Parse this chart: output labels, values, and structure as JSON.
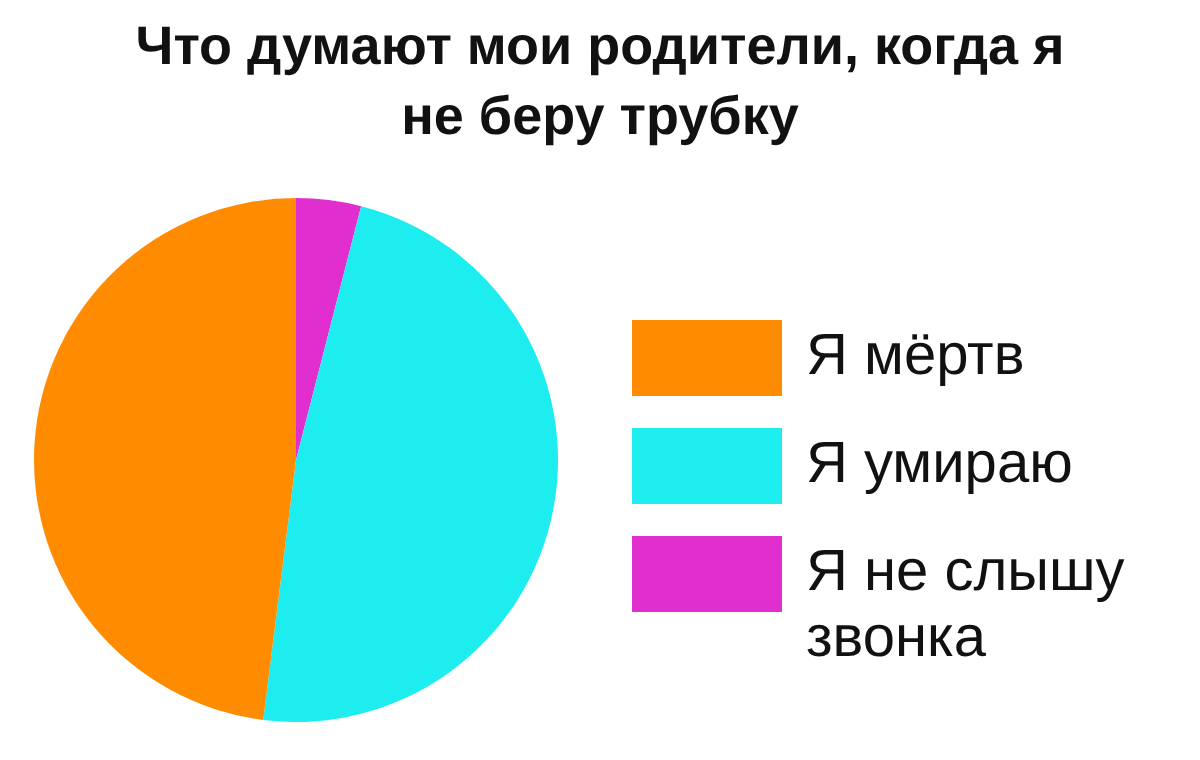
{
  "chart_data": {
    "type": "pie",
    "title": "Что думают мои родители, когда я не беру трубку",
    "categories": [
      "Я мёртв",
      "Я умираю",
      "Я не слышу звонка"
    ],
    "values": [
      48,
      48,
      4
    ],
    "colors": [
      "#ff8c00",
      "#1eedef",
      "#e02ecf"
    ],
    "legend": "right"
  }
}
